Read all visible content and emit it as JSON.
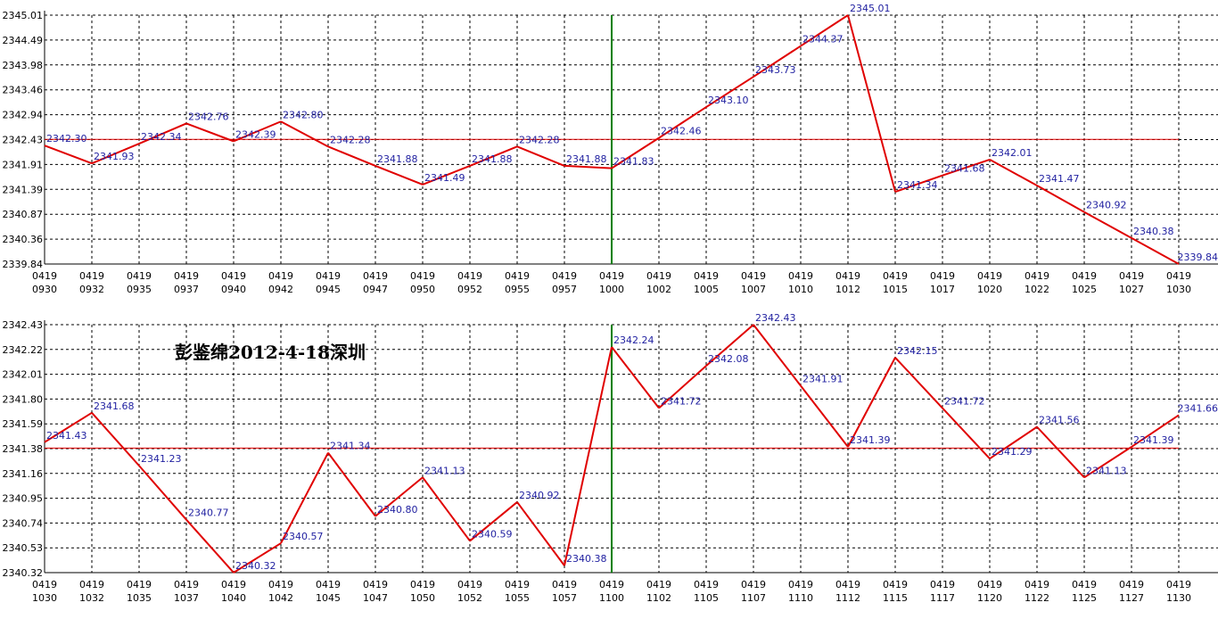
{
  "colors": {
    "line": "#e00000",
    "ref_line": "#e00000",
    "divider": "#008000",
    "labels": "#1f1fa0",
    "axis": "#000000"
  },
  "watermark": "彭鉴绵2012-4-18深圳",
  "chart_data": [
    {
      "type": "line",
      "x_top": [
        "0419",
        "0419",
        "0419",
        "0419",
        "0419",
        "0419",
        "0419",
        "0419",
        "0419",
        "0419",
        "0419",
        "0419",
        "0419",
        "0419",
        "0419",
        "0419",
        "0419",
        "0419",
        "0419",
        "0419",
        "0419",
        "0419",
        "0419",
        "0419",
        "0419"
      ],
      "x": [
        "0930",
        "0932",
        "0935",
        "0937",
        "0940",
        "0942",
        "0945",
        "0947",
        "0950",
        "0952",
        "0955",
        "0957",
        "1000",
        "1002",
        "1005",
        "1007",
        "1010",
        "1012",
        "1015",
        "1017",
        "1020",
        "1022",
        "1025",
        "1027",
        "1030"
      ],
      "values": [
        2342.3,
        2341.93,
        2342.34,
        2342.76,
        2342.39,
        2342.8,
        2342.28,
        2341.88,
        2341.49,
        2341.88,
        2342.28,
        2341.88,
        2341.83,
        2342.46,
        2343.1,
        2343.73,
        2344.37,
        2345.01,
        2341.34,
        2341.68,
        2342.01,
        2341.47,
        2340.92,
        2340.38,
        2339.84
      ],
      "ytick_labels": [
        "2339.84",
        "2340.36",
        "2340.87",
        "2341.39",
        "2341.91",
        "2342.43",
        "2342.94",
        "2343.46",
        "2343.98",
        "2344.49",
        "2345.01"
      ],
      "ylim": [
        2339.84,
        2345.01
      ],
      "reference_value": 2342.43,
      "divider_index": 12,
      "grid": true
    },
    {
      "type": "line",
      "x_top": [
        "0419",
        "0419",
        "0419",
        "0419",
        "0419",
        "0419",
        "0419",
        "0419",
        "0419",
        "0419",
        "0419",
        "0419",
        "0419",
        "0419",
        "0419",
        "0419",
        "0419",
        "0419",
        "0419",
        "0419",
        "0419",
        "0419",
        "0419",
        "0419",
        "0419"
      ],
      "x": [
        "1030",
        "1032",
        "1035",
        "1037",
        "1040",
        "1042",
        "1045",
        "1047",
        "1050",
        "1052",
        "1055",
        "1057",
        "1100",
        "1102",
        "1105",
        "1107",
        "1110",
        "1112",
        "1115",
        "1117",
        "1120",
        "1122",
        "1125",
        "1127",
        "1130"
      ],
      "values": [
        2341.43,
        2341.68,
        2341.23,
        2340.77,
        2340.32,
        2340.57,
        2341.34,
        2340.8,
        2341.13,
        2340.59,
        2340.92,
        2340.38,
        2342.24,
        2341.72,
        2342.08,
        2342.43,
        2341.91,
        2341.39,
        2342.15,
        2341.72,
        2341.29,
        2341.56,
        2341.13,
        2341.39,
        2341.66
      ],
      "ytick_labels": [
        "2340.32",
        "2340.53",
        "2340.74",
        "2340.95",
        "2341.16",
        "2341.38",
        "2341.59",
        "2341.80",
        "2342.01",
        "2342.22",
        "2342.43"
      ],
      "ylim": [
        2340.32,
        2342.43
      ],
      "reference_value": 2341.38,
      "divider_index": 12,
      "grid": true
    }
  ]
}
